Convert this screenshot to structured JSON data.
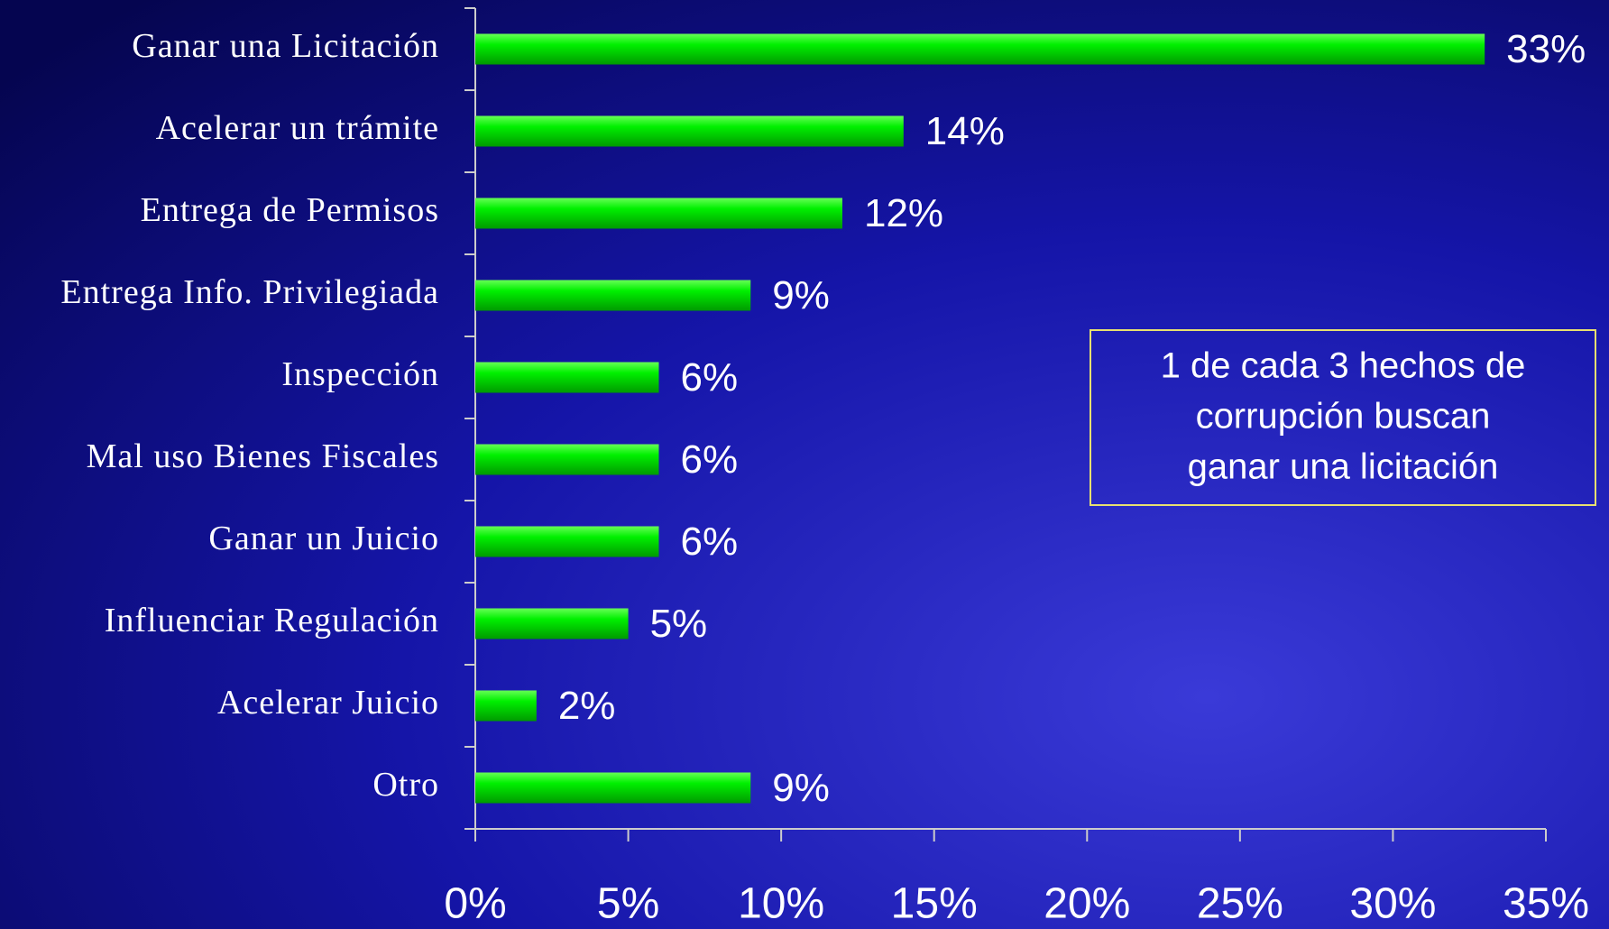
{
  "chart_data": {
    "type": "bar",
    "orientation": "horizontal",
    "categories": [
      "Ganar una Licitación",
      "Acelerar un trámite",
      "Entrega de Permisos",
      "Entrega Info. Privilegiada",
      "Inspección",
      "Mal uso Bienes Fiscales",
      "Ganar un Juicio",
      "Influenciar Regulación",
      "Acelerar Juicio",
      "Otro"
    ],
    "values": [
      33,
      14,
      12,
      9,
      6,
      6,
      6,
      5,
      2,
      9
    ],
    "value_labels": [
      "33%",
      "14%",
      "12%",
      "9%",
      "6%",
      "6%",
      "6%",
      "5%",
      "2%",
      "9%"
    ],
    "color": "#00ee00",
    "xlim": [
      0,
      35
    ],
    "xticks": [
      {
        "value": 0,
        "label": "0%"
      },
      {
        "value": 5,
        "label": "5%"
      },
      {
        "value": 10,
        "label": "10%"
      },
      {
        "value": 15,
        "label": "15%"
      },
      {
        "value": 20,
        "label": "20%"
      },
      {
        "value": 25,
        "label": "25%"
      },
      {
        "value": 30,
        "label": "30%"
      },
      {
        "value": 35,
        "label": "35%"
      }
    ],
    "annotation": [
      "1 de cada 3 hechos de",
      "corrupción buscan",
      "ganar una licitación"
    ]
  }
}
